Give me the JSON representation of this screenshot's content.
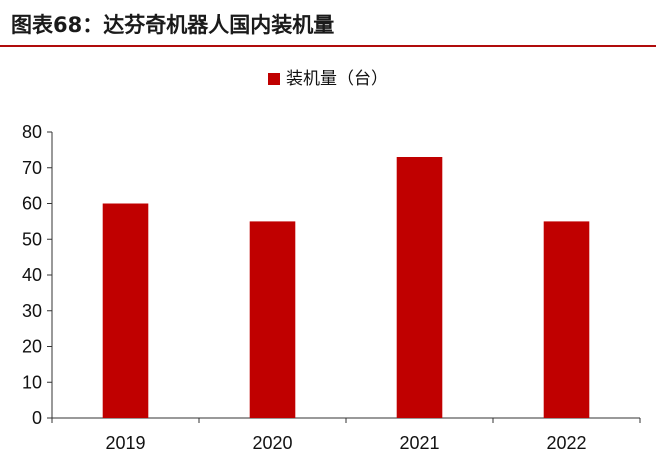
{
  "header": {
    "title": "图表68：达芬奇机器人国内装机量"
  },
  "colors": {
    "accent": "#b00c0c",
    "bar": "#c00000",
    "axis": "#333333"
  },
  "chart_data": {
    "type": "bar",
    "title": "",
    "xlabel": "",
    "ylabel": "",
    "categories": [
      "2019",
      "2020",
      "2021",
      "2022"
    ],
    "series": [
      {
        "name": "装机量（台）",
        "values": [
          60,
          55,
          73,
          55
        ]
      }
    ],
    "ylim": [
      0,
      80
    ],
    "yticks": [
      0,
      10,
      20,
      30,
      40,
      50,
      60,
      70,
      80
    ],
    "grid": false,
    "legend": "top-center"
  }
}
